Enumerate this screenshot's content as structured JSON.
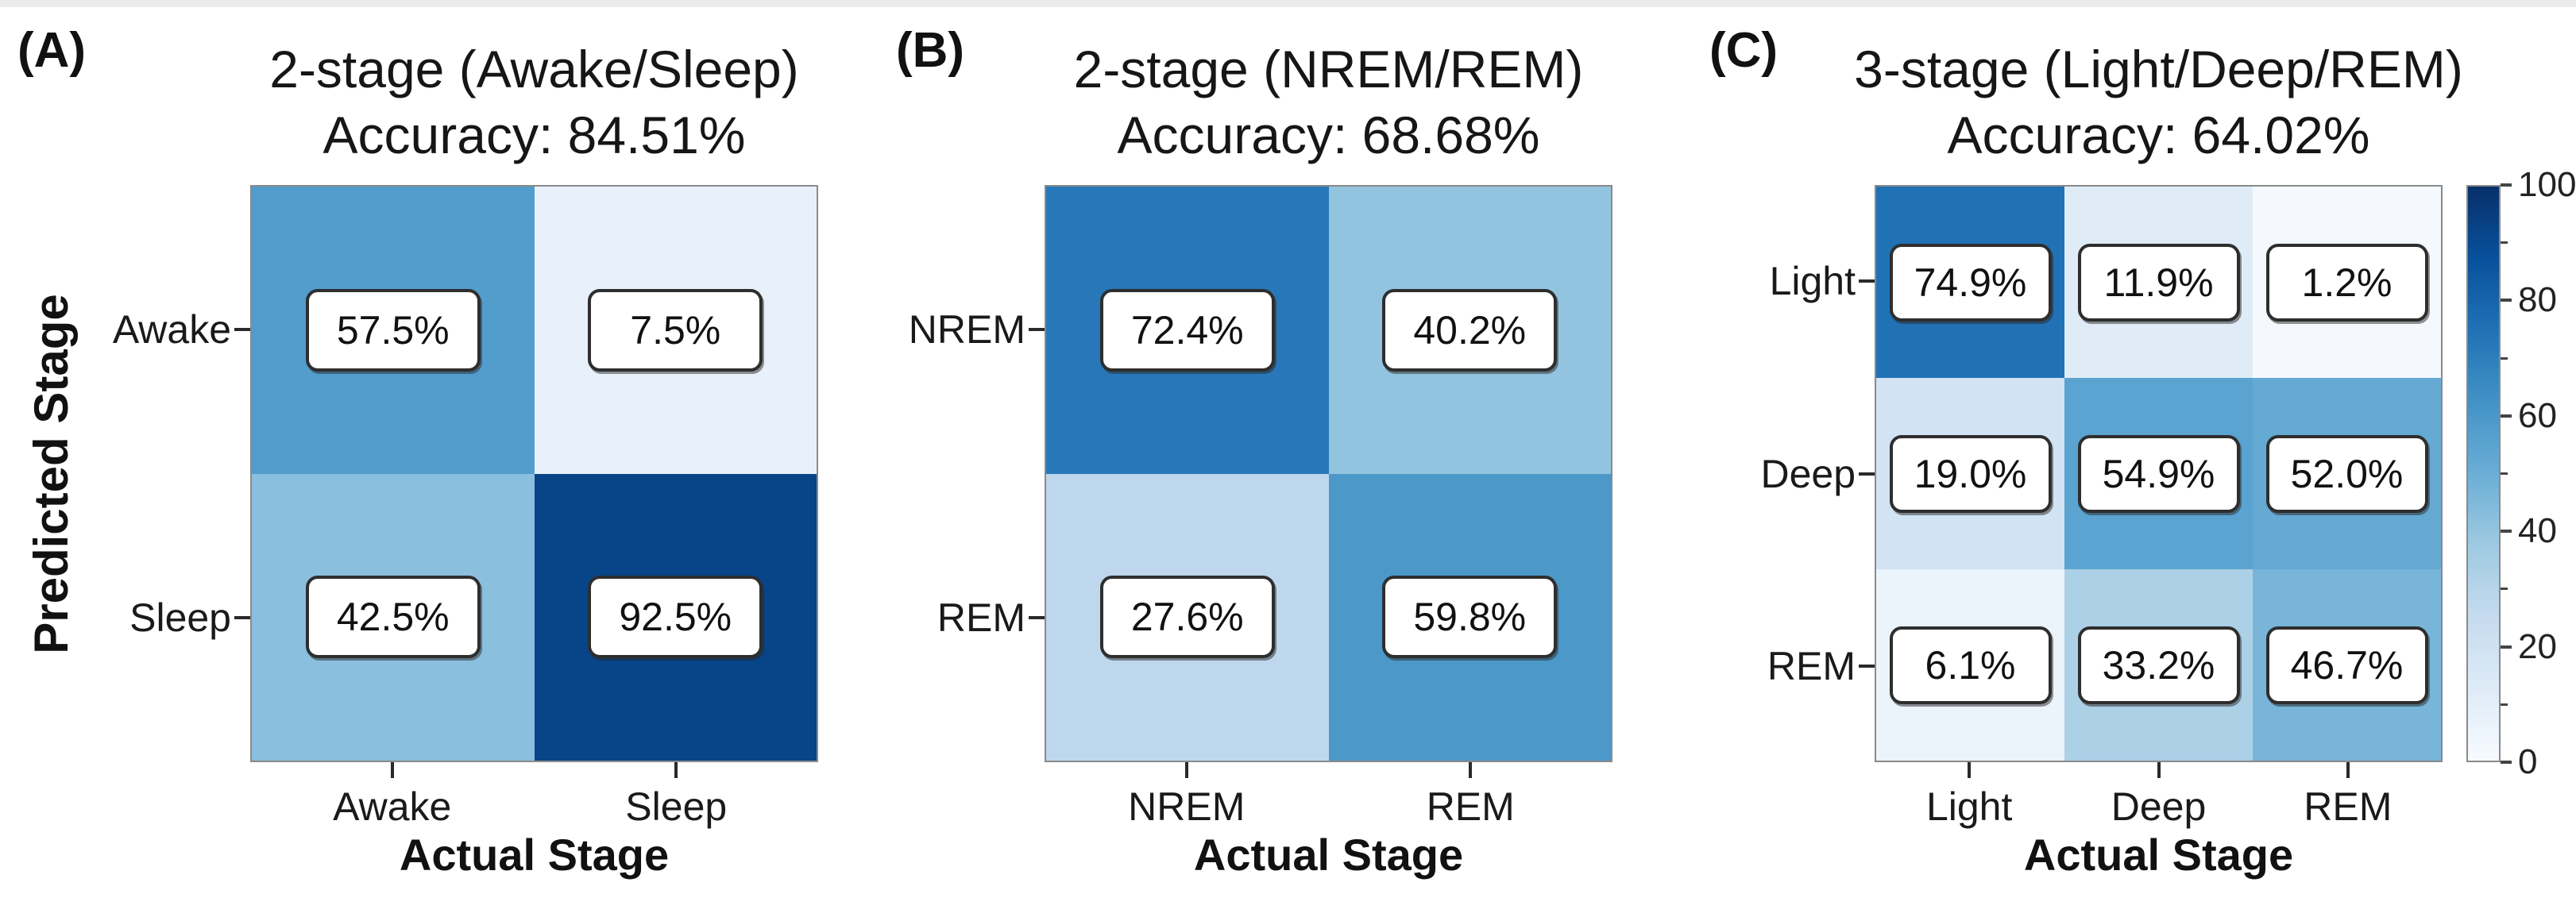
{
  "figure": {
    "background": "#ffffff",
    "text_color": "#1a1a1a",
    "spine_color": "#8a8a8a"
  },
  "chart_data": [
    {
      "type": "heatmap",
      "panel_label": "(A)",
      "title": "2-stage (Awake/Sleep)",
      "subtitle": "Accuracy: 84.51%",
      "xlabel": "Actual Stage",
      "ylabel": "Predicted Stage",
      "x_ticklabels": [
        "Awake",
        "Sleep"
      ],
      "y_ticklabels": [
        "Awake",
        "Sleep"
      ],
      "values_percent": [
        [
          57.5,
          7.5
        ],
        [
          42.5,
          92.5
        ]
      ],
      "value_suffix": "%",
      "vmin": 0,
      "vmax": 100
    },
    {
      "type": "heatmap",
      "panel_label": "(B)",
      "title": "2-stage (NREM/REM)",
      "subtitle": "Accuracy: 68.68%",
      "xlabel": "Actual Stage",
      "x_ticklabels": [
        "NREM",
        "REM"
      ],
      "y_ticklabels": [
        "NREM",
        "REM"
      ],
      "values_percent": [
        [
          72.4,
          40.2
        ],
        [
          27.6,
          59.8
        ]
      ],
      "value_suffix": "%",
      "vmin": 0,
      "vmax": 100
    },
    {
      "type": "heatmap",
      "panel_label": "(C)",
      "title": "3-stage (Light/Deep/REM)",
      "subtitle": "Accuracy: 64.02%",
      "xlabel": "Actual Stage",
      "x_ticklabels": [
        "Light",
        "Deep",
        "REM"
      ],
      "y_ticklabels": [
        "Light",
        "Deep",
        "REM"
      ],
      "values_percent": [
        [
          74.9,
          11.9,
          1.2
        ],
        [
          19.0,
          54.9,
          52.0
        ],
        [
          6.1,
          33.2,
          46.7
        ]
      ],
      "value_suffix": "%",
      "vmin": 0,
      "vmax": 100
    }
  ],
  "colorbar": {
    "min": 0,
    "max": 100,
    "major_tick_labels": [
      "0",
      "20",
      "40",
      "60",
      "80",
      "100"
    ],
    "major_ticks": [
      0,
      20,
      40,
      60,
      80,
      100
    ],
    "minor_ticks": [
      10,
      30,
      50,
      70,
      90
    ],
    "colormap": "Blues",
    "anchor_colors": [
      "#f7fbff",
      "#deebf7",
      "#c6dbef",
      "#9ecae1",
      "#6baed6",
      "#4292c6",
      "#2171b5",
      "#08519c",
      "#08306b"
    ]
  }
}
